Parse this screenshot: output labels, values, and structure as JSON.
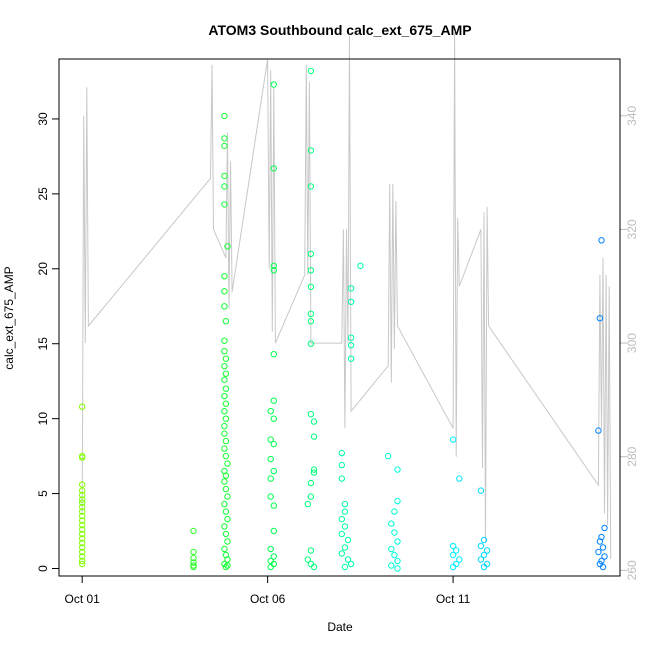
{
  "chart_data": {
    "type": "scatter",
    "title": "ATOM3 Southbound calc_ext_675_AMP",
    "xlabel": "Date",
    "ylabel": "calc_ext_675_AMP",
    "x_ticks": [
      "Oct 01",
      "Oct 06",
      "Oct 11"
    ],
    "y_ticks": [
      "0",
      "5",
      "10",
      "15",
      "20",
      "25",
      "30"
    ],
    "y2_ticks": [
      "260",
      "280",
      "300",
      "320",
      "340"
    ],
    "xlim": [
      "2023-09-30T09:00",
      "2023-10-15T12:00"
    ],
    "ylim": [
      -0.5,
      34
    ],
    "y2lim": [
      259,
      350
    ],
    "y2_label": "",
    "grid": false,
    "colors": {
      "secondary_line": "#c8c8c8",
      "secondary_axis": "#bdbdbd",
      "gradient": [
        "#80ff00",
        "#00ff40",
        "#00ffff",
        "#0080ff"
      ]
    },
    "series": [
      {
        "label_note": "points colored by time gradient",
        "points": [
          [
            "2023-10-01T00:00",
            10.8
          ],
          [
            "2023-10-01T00:00",
            7.5
          ],
          [
            "2023-10-01T00:00",
            7.4
          ],
          [
            "2023-10-01T00:00",
            5.6
          ],
          [
            "2023-10-01T00:00",
            5.2
          ],
          [
            "2023-10-01T00:00",
            4.9
          ],
          [
            "2023-10-01T00:00",
            4.6
          ],
          [
            "2023-10-01T00:00",
            4.4
          ],
          [
            "2023-10-01T00:00",
            4.1
          ],
          [
            "2023-10-01T00:00",
            3.8
          ],
          [
            "2023-10-01T00:00",
            3.5
          ],
          [
            "2023-10-01T00:00",
            3.2
          ],
          [
            "2023-10-01T00:00",
            2.9
          ],
          [
            "2023-10-01T00:00",
            2.6
          ],
          [
            "2023-10-01T00:00",
            2.3
          ],
          [
            "2023-10-01T00:00",
            2.0
          ],
          [
            "2023-10-01T00:00",
            1.7
          ],
          [
            "2023-10-01T00:00",
            1.4
          ],
          [
            "2023-10-01T00:00",
            1.1
          ],
          [
            "2023-10-01T00:00",
            0.8
          ],
          [
            "2023-10-01T00:00",
            0.5
          ],
          [
            "2023-10-01T00:00",
            0.3
          ],
          [
            "2023-10-04T00:00",
            2.5
          ],
          [
            "2023-10-04T00:00",
            1.1
          ],
          [
            "2023-10-04T00:00",
            0.7
          ],
          [
            "2023-10-04T00:00",
            0.4
          ],
          [
            "2023-10-04T00:00",
            0.2
          ],
          [
            "2023-10-04T00:00",
            0.1
          ],
          [
            "2023-10-04T20:00",
            30.2
          ],
          [
            "2023-10-04T20:00",
            28.7
          ],
          [
            "2023-10-04T20:00",
            28.2
          ],
          [
            "2023-10-04T20:00",
            26.2
          ],
          [
            "2023-10-04T20:00",
            25.5
          ],
          [
            "2023-10-04T20:00",
            24.3
          ],
          [
            "2023-10-04T22:00",
            21.5
          ],
          [
            "2023-10-04T20:00",
            19.5
          ],
          [
            "2023-10-04T20:00",
            18.5
          ],
          [
            "2023-10-04T20:00",
            17.5
          ],
          [
            "2023-10-04T21:00",
            16.5
          ],
          [
            "2023-10-04T20:00",
            15.2
          ],
          [
            "2023-10-04T20:00",
            14.5
          ],
          [
            "2023-10-04T21:00",
            14.0
          ],
          [
            "2023-10-04T20:00",
            13.5
          ],
          [
            "2023-10-04T21:00",
            13.0
          ],
          [
            "2023-10-04T20:00",
            12.6
          ],
          [
            "2023-10-04T21:00",
            12.0
          ],
          [
            "2023-10-04T20:00",
            11.5
          ],
          [
            "2023-10-04T21:00",
            11.0
          ],
          [
            "2023-10-04T20:00",
            10.5
          ],
          [
            "2023-10-04T21:00",
            10.0
          ],
          [
            "2023-10-04T20:00",
            9.5
          ],
          [
            "2023-10-04T20:00",
            9.0
          ],
          [
            "2023-10-04T21:00",
            8.5
          ],
          [
            "2023-10-04T20:00",
            8.0
          ],
          [
            "2023-10-04T21:00",
            7.5
          ],
          [
            "2023-10-04T22:00",
            7.0
          ],
          [
            "2023-10-04T20:00",
            6.5
          ],
          [
            "2023-10-04T21:00",
            6.2
          ],
          [
            "2023-10-04T20:00",
            5.8
          ],
          [
            "2023-10-04T21:00",
            5.3
          ],
          [
            "2023-10-04T22:00",
            4.8
          ],
          [
            "2023-10-04T20:00",
            4.3
          ],
          [
            "2023-10-04T21:00",
            3.8
          ],
          [
            "2023-10-04T22:00",
            3.3
          ],
          [
            "2023-10-04T20:00",
            2.8
          ],
          [
            "2023-10-04T21:00",
            2.3
          ],
          [
            "2023-10-04T22:00",
            1.8
          ],
          [
            "2023-10-04T20:00",
            1.3
          ],
          [
            "2023-10-04T21:00",
            0.9
          ],
          [
            "2023-10-04T22:00",
            0.6
          ],
          [
            "2023-10-04T20:00",
            0.3
          ],
          [
            "2023-10-04T21:00",
            0.1
          ],
          [
            "2023-10-04T22:00",
            0.2
          ],
          [
            "2023-10-06T04:00",
            32.3
          ],
          [
            "2023-10-06T04:00",
            26.7
          ],
          [
            "2023-10-06T04:00",
            20.2
          ],
          [
            "2023-10-06T04:00",
            19.9
          ],
          [
            "2023-10-06T04:00",
            14.3
          ],
          [
            "2023-10-06T04:00",
            11.2
          ],
          [
            "2023-10-06T02:00",
            10.5
          ],
          [
            "2023-10-06T04:00",
            10.0
          ],
          [
            "2023-10-06T02:00",
            8.6
          ],
          [
            "2023-10-06T04:00",
            8.3
          ],
          [
            "2023-10-06T02:00",
            7.3
          ],
          [
            "2023-10-06T04:00",
            6.5
          ],
          [
            "2023-10-06T02:00",
            6.0
          ],
          [
            "2023-10-06T02:00",
            4.8
          ],
          [
            "2023-10-06T04:00",
            4.2
          ],
          [
            "2023-10-06T04:00",
            2.5
          ],
          [
            "2023-10-06T02:00",
            1.3
          ],
          [
            "2023-10-06T04:00",
            0.8
          ],
          [
            "2023-10-06T02:00",
            0.5
          ],
          [
            "2023-10-06T04:00",
            0.3
          ],
          [
            "2023-10-06T02:00",
            0.1
          ],
          [
            "2023-10-07T04:00",
            33.2
          ],
          [
            "2023-10-07T04:00",
            27.9
          ],
          [
            "2023-10-07T04:00",
            25.5
          ],
          [
            "2023-10-07T04:00",
            21.0
          ],
          [
            "2023-10-07T04:00",
            19.9
          ],
          [
            "2023-10-07T04:00",
            18.8
          ],
          [
            "2023-10-07T04:00",
            17.0
          ],
          [
            "2023-10-07T04:00",
            16.5
          ],
          [
            "2023-10-07T04:00",
            15.0
          ],
          [
            "2023-10-07T04:00",
            10.3
          ],
          [
            "2023-10-07T06:00",
            9.8
          ],
          [
            "2023-10-07T06:00",
            8.8
          ],
          [
            "2023-10-07T06:00",
            6.6
          ],
          [
            "2023-10-07T06:00",
            6.4
          ],
          [
            "2023-10-07T04:00",
            5.7
          ],
          [
            "2023-10-07T04:00",
            4.8
          ],
          [
            "2023-10-07T02:00",
            4.3
          ],
          [
            "2023-10-07T04:00",
            1.2
          ],
          [
            "2023-10-07T02:00",
            0.6
          ],
          [
            "2023-10-07T04:00",
            0.3
          ],
          [
            "2023-10-07T06:00",
            0.1
          ],
          [
            "2023-10-08T06:00",
            18.7
          ],
          [
            "2023-10-08T06:00",
            17.8
          ],
          [
            "2023-10-08T06:00",
            15.4
          ],
          [
            "2023-10-08T06:00",
            14.9
          ],
          [
            "2023-10-08T06:00",
            14.0
          ],
          [
            "2023-10-08T12:00",
            20.2
          ],
          [
            "2023-10-08T00:00",
            7.7
          ],
          [
            "2023-10-08T00:00",
            6.9
          ],
          [
            "2023-10-08T00:00",
            6.0
          ],
          [
            "2023-10-08T02:00",
            4.3
          ],
          [
            "2023-10-08T02:00",
            3.8
          ],
          [
            "2023-10-08T00:00",
            3.3
          ],
          [
            "2023-10-08T02:00",
            2.8
          ],
          [
            "2023-10-08T00:00",
            2.3
          ],
          [
            "2023-10-08T04:00",
            1.9
          ],
          [
            "2023-10-08T02:00",
            1.4
          ],
          [
            "2023-10-08T00:00",
            1.0
          ],
          [
            "2023-10-08T04:00",
            0.6
          ],
          [
            "2023-10-08T06:00",
            0.3
          ],
          [
            "2023-10-08T02:00",
            0.1
          ],
          [
            "2023-10-09T06:00",
            7.5
          ],
          [
            "2023-10-09T12:00",
            6.6
          ],
          [
            "2023-10-09T12:00",
            4.5
          ],
          [
            "2023-10-09T10:00",
            3.8
          ],
          [
            "2023-10-09T08:00",
            3.0
          ],
          [
            "2023-10-09T10:00",
            2.4
          ],
          [
            "2023-10-09T12:00",
            1.8
          ],
          [
            "2023-10-09T08:00",
            1.3
          ],
          [
            "2023-10-09T10:00",
            0.9
          ],
          [
            "2023-10-09T12:00",
            0.5
          ],
          [
            "2023-10-09T08:00",
            0.2
          ],
          [
            "2023-10-09T12:00",
            0.0
          ],
          [
            "2023-10-11T00:00",
            8.6
          ],
          [
            "2023-10-11T04:00",
            6.0
          ],
          [
            "2023-10-11T00:00",
            1.5
          ],
          [
            "2023-10-11T02:00",
            1.2
          ],
          [
            "2023-10-11T00:00",
            0.9
          ],
          [
            "2023-10-11T04:00",
            0.6
          ],
          [
            "2023-10-11T02:00",
            0.3
          ],
          [
            "2023-10-11T00:00",
            0.1
          ],
          [
            "2023-10-11T18:00",
            5.2
          ],
          [
            "2023-10-11T20:00",
            1.9
          ],
          [
            "2023-10-11T18:00",
            1.5
          ],
          [
            "2023-10-11T22:00",
            1.2
          ],
          [
            "2023-10-11T20:00",
            0.9
          ],
          [
            "2023-10-11T18:00",
            0.6
          ],
          [
            "2023-10-11T22:00",
            0.3
          ],
          [
            "2023-10-11T20:00",
            0.1
          ],
          [
            "2023-10-15T00:00",
            21.9
          ],
          [
            "2023-10-14T23:00",
            16.7
          ],
          [
            "2023-10-14T22:00",
            9.2
          ],
          [
            "2023-10-15T02:00",
            2.7
          ],
          [
            "2023-10-15T00:00",
            2.1
          ],
          [
            "2023-10-14T23:00",
            1.8
          ],
          [
            "2023-10-15T01:00",
            1.4
          ],
          [
            "2023-10-14T22:00",
            1.1
          ],
          [
            "2023-10-15T02:00",
            0.8
          ],
          [
            "2023-10-15T00:00",
            0.5
          ],
          [
            "2023-10-14T23:00",
            0.3
          ],
          [
            "2023-10-15T01:00",
            0.1
          ]
        ]
      }
    ],
    "secondary_series": {
      "axis": "right",
      "points": [
        [
          "2023-10-01T00:00",
          270
        ],
        [
          "2023-10-01T01:00",
          340
        ],
        [
          "2023-10-01T02:00",
          300
        ],
        [
          "2023-10-01T03:00",
          345
        ],
        [
          "2023-10-01T04:00",
          303
        ],
        [
          "2023-10-04T11:00",
          329
        ],
        [
          "2023-10-04T12:00",
          349
        ],
        [
          "2023-10-04T13:00",
          320
        ],
        [
          "2023-10-04T21:00",
          315
        ],
        [
          "2023-10-04T22:00",
          337
        ],
        [
          "2023-10-04T23:00",
          306
        ],
        [
          "2023-10-05T00:00",
          332
        ],
        [
          "2023-10-05T01:00",
          309
        ],
        [
          "2023-10-06T00:00",
          350
        ],
        [
          "2023-10-06T01:00",
          313
        ],
        [
          "2023-10-06T02:00",
          348
        ],
        [
          "2023-10-06T03:00",
          302
        ],
        [
          "2023-10-06T04:00",
          345
        ],
        [
          "2023-10-06T05:00",
          300
        ],
        [
          "2023-10-07T00:00",
          312
        ],
        [
          "2023-10-07T01:00",
          349
        ],
        [
          "2023-10-07T02:00",
          312
        ],
        [
          "2023-10-07T03:00",
          346
        ],
        [
          "2023-10-07T04:00",
          300
        ],
        [
          "2023-10-08T00:00",
          300
        ],
        [
          "2023-10-08T01:00",
          320
        ],
        [
          "2023-10-08T02:00",
          285
        ],
        [
          "2023-10-08T03:00",
          320
        ],
        [
          "2023-10-08T04:00",
          300
        ],
        [
          "2023-10-08T05:00",
          354
        ],
        [
          "2023-10-08T06:00",
          288
        ],
        [
          "2023-10-09T06:00",
          296
        ],
        [
          "2023-10-09T07:00",
          328
        ],
        [
          "2023-10-09T08:00",
          293
        ],
        [
          "2023-10-09T09:00",
          328
        ],
        [
          "2023-10-09T10:00",
          299
        ],
        [
          "2023-10-09T11:00",
          325
        ],
        [
          "2023-10-09T12:00",
          303
        ],
        [
          "2023-10-11T00:00",
          285
        ],
        [
          "2023-10-11T01:00",
          355
        ],
        [
          "2023-10-11T02:00",
          280
        ],
        [
          "2023-10-11T03:00",
          322
        ],
        [
          "2023-10-11T04:00",
          310
        ],
        [
          "2023-10-11T18:00",
          320
        ],
        [
          "2023-10-11T19:00",
          278
        ],
        [
          "2023-10-11T20:00",
          323
        ],
        [
          "2023-10-11T21:00",
          265
        ],
        [
          "2023-10-11T22:00",
          324
        ],
        [
          "2023-10-11T23:00",
          303
        ],
        [
          "2023-10-14T22:00",
          275
        ],
        [
          "2023-10-14T23:00",
          312
        ],
        [
          "2023-10-15T00:00",
          285
        ],
        [
          "2023-10-15T01:00",
          315
        ],
        [
          "2023-10-15T02:00",
          270
        ],
        [
          "2023-10-15T03:00",
          312
        ],
        [
          "2023-10-15T04:00",
          268
        ],
        [
          "2023-10-15T05:00",
          310
        ],
        [
          "2023-10-15T06:00",
          262
        ]
      ]
    }
  }
}
